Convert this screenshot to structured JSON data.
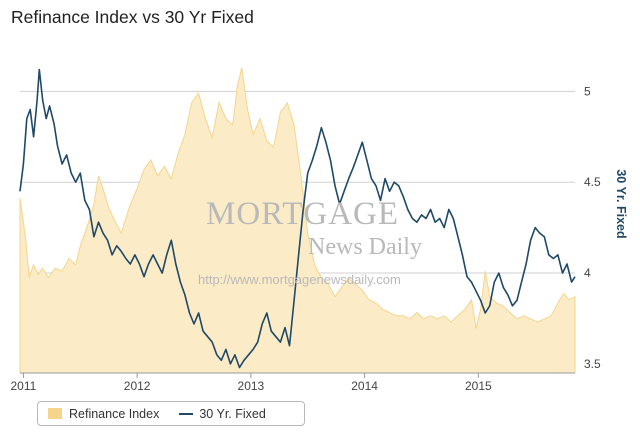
{
  "page": {
    "title": "Refinance Index vs 30 Yr Fixed"
  },
  "watermark": {
    "line1": "MORTGAGE",
    "line2": "News Daily",
    "url": "http://www.mortgagenewsdaily.com"
  },
  "legend": {
    "items": [
      {
        "label": "Refinance Index",
        "color": "#f5d48c"
      },
      {
        "label": "30 Yr. Fixed",
        "color": "#1f4966"
      }
    ]
  },
  "chart_data": {
    "type": "area+line",
    "x_tick_labels": [
      "2011",
      "2012",
      "2013",
      "2014",
      "2015"
    ],
    "x_tick_values": [
      2011,
      2012,
      2013,
      2014,
      2015
    ],
    "xlim": [
      2010.97,
      2015.85
    ],
    "right_axis": {
      "label": "30 Yr. Fixed",
      "ticks": [
        3.5,
        4,
        4.5,
        5
      ],
      "ylim": [
        3.45,
        5.2
      ]
    },
    "grid": true,
    "legend_position": "bottom-left",
    "series": [
      {
        "name": "Refinance Index",
        "type": "area",
        "axis": "hidden-left",
        "ylim": [
          0,
          1
        ],
        "points": [
          [
            2010.97,
            0.55
          ],
          [
            2011.02,
            0.42
          ],
          [
            2011.05,
            0.3
          ],
          [
            2011.09,
            0.34
          ],
          [
            2011.13,
            0.31
          ],
          [
            2011.17,
            0.33
          ],
          [
            2011.22,
            0.3
          ],
          [
            2011.28,
            0.33
          ],
          [
            2011.34,
            0.32
          ],
          [
            2011.4,
            0.36
          ],
          [
            2011.46,
            0.34
          ],
          [
            2011.5,
            0.4
          ],
          [
            2011.56,
            0.46
          ],
          [
            2011.62,
            0.53
          ],
          [
            2011.66,
            0.62
          ],
          [
            2011.7,
            0.58
          ],
          [
            2011.75,
            0.52
          ],
          [
            2011.8,
            0.48
          ],
          [
            2011.86,
            0.44
          ],
          [
            2011.93,
            0.52
          ],
          [
            2012.0,
            0.58
          ],
          [
            2012.06,
            0.64
          ],
          [
            2012.12,
            0.67
          ],
          [
            2012.18,
            0.62
          ],
          [
            2012.24,
            0.65
          ],
          [
            2012.3,
            0.61
          ],
          [
            2012.36,
            0.69
          ],
          [
            2012.42,
            0.75
          ],
          [
            2012.48,
            0.85
          ],
          [
            2012.54,
            0.88
          ],
          [
            2012.6,
            0.8
          ],
          [
            2012.66,
            0.74
          ],
          [
            2012.72,
            0.85
          ],
          [
            2012.78,
            0.8
          ],
          [
            2012.84,
            0.78
          ],
          [
            2012.88,
            0.9
          ],
          [
            2012.92,
            0.96
          ],
          [
            2012.97,
            0.83
          ],
          [
            2013.02,
            0.75
          ],
          [
            2013.08,
            0.8
          ],
          [
            2013.14,
            0.73
          ],
          [
            2013.2,
            0.71
          ],
          [
            2013.26,
            0.82
          ],
          [
            2013.32,
            0.85
          ],
          [
            2013.38,
            0.78
          ],
          [
            2013.44,
            0.62
          ],
          [
            2013.5,
            0.44
          ],
          [
            2013.56,
            0.34
          ],
          [
            2013.62,
            0.3
          ],
          [
            2013.68,
            0.28
          ],
          [
            2013.74,
            0.24
          ],
          [
            2013.8,
            0.27
          ],
          [
            2013.86,
            0.3
          ],
          [
            2013.92,
            0.28
          ],
          [
            2013.98,
            0.26
          ],
          [
            2014.04,
            0.23
          ],
          [
            2014.1,
            0.22
          ],
          [
            2014.16,
            0.2
          ],
          [
            2014.22,
            0.19
          ],
          [
            2014.28,
            0.18
          ],
          [
            2014.34,
            0.18
          ],
          [
            2014.4,
            0.17
          ],
          [
            2014.46,
            0.19
          ],
          [
            2014.52,
            0.17
          ],
          [
            2014.58,
            0.18
          ],
          [
            2014.64,
            0.17
          ],
          [
            2014.7,
            0.18
          ],
          [
            2014.76,
            0.16
          ],
          [
            2014.82,
            0.18
          ],
          [
            2014.88,
            0.2
          ],
          [
            2014.94,
            0.23
          ],
          [
            2014.98,
            0.14
          ],
          [
            2015.02,
            0.2
          ],
          [
            2015.06,
            0.32
          ],
          [
            2015.1,
            0.24
          ],
          [
            2015.16,
            0.22
          ],
          [
            2015.22,
            0.21
          ],
          [
            2015.28,
            0.19
          ],
          [
            2015.34,
            0.17
          ],
          [
            2015.4,
            0.18
          ],
          [
            2015.46,
            0.17
          ],
          [
            2015.52,
            0.16
          ],
          [
            2015.58,
            0.17
          ],
          [
            2015.64,
            0.18
          ],
          [
            2015.7,
            0.22
          ],
          [
            2015.75,
            0.25
          ],
          [
            2015.8,
            0.23
          ],
          [
            2015.85,
            0.24
          ]
        ]
      },
      {
        "name": "30 Yr. Fixed",
        "type": "line",
        "axis": "right",
        "points": [
          [
            2010.97,
            4.45
          ],
          [
            2011.0,
            4.6
          ],
          [
            2011.03,
            4.85
          ],
          [
            2011.06,
            4.9
          ],
          [
            2011.09,
            4.75
          ],
          [
            2011.12,
            4.95
          ],
          [
            2011.14,
            5.12
          ],
          [
            2011.17,
            4.95
          ],
          [
            2011.2,
            4.85
          ],
          [
            2011.23,
            4.92
          ],
          [
            2011.27,
            4.82
          ],
          [
            2011.3,
            4.7
          ],
          [
            2011.34,
            4.6
          ],
          [
            2011.38,
            4.65
          ],
          [
            2011.42,
            4.55
          ],
          [
            2011.46,
            4.5
          ],
          [
            2011.5,
            4.55
          ],
          [
            2011.54,
            4.4
          ],
          [
            2011.58,
            4.35
          ],
          [
            2011.62,
            4.2
          ],
          [
            2011.66,
            4.28
          ],
          [
            2011.7,
            4.22
          ],
          [
            2011.74,
            4.18
          ],
          [
            2011.78,
            4.1
          ],
          [
            2011.82,
            4.15
          ],
          [
            2011.86,
            4.12
          ],
          [
            2011.9,
            4.08
          ],
          [
            2011.94,
            4.05
          ],
          [
            2011.98,
            4.1
          ],
          [
            2012.02,
            4.05
          ],
          [
            2012.06,
            3.98
          ],
          [
            2012.1,
            4.05
          ],
          [
            2012.14,
            4.1
          ],
          [
            2012.18,
            4.05
          ],
          [
            2012.22,
            4.0
          ],
          [
            2012.26,
            4.1
          ],
          [
            2012.3,
            4.18
          ],
          [
            2012.34,
            4.05
          ],
          [
            2012.38,
            3.95
          ],
          [
            2012.42,
            3.88
          ],
          [
            2012.46,
            3.78
          ],
          [
            2012.5,
            3.72
          ],
          [
            2012.54,
            3.78
          ],
          [
            2012.58,
            3.68
          ],
          [
            2012.62,
            3.65
          ],
          [
            2012.66,
            3.62
          ],
          [
            2012.7,
            3.55
          ],
          [
            2012.74,
            3.52
          ],
          [
            2012.78,
            3.58
          ],
          [
            2012.82,
            3.5
          ],
          [
            2012.86,
            3.55
          ],
          [
            2012.9,
            3.48
          ],
          [
            2012.94,
            3.52
          ],
          [
            2012.98,
            3.55
          ],
          [
            2013.02,
            3.58
          ],
          [
            2013.06,
            3.62
          ],
          [
            2013.1,
            3.72
          ],
          [
            2013.14,
            3.78
          ],
          [
            2013.18,
            3.68
          ],
          [
            2013.22,
            3.65
          ],
          [
            2013.26,
            3.62
          ],
          [
            2013.3,
            3.7
          ],
          [
            2013.34,
            3.6
          ],
          [
            2013.38,
            3.85
          ],
          [
            2013.42,
            4.1
          ],
          [
            2013.46,
            4.35
          ],
          [
            2013.5,
            4.55
          ],
          [
            2013.54,
            4.62
          ],
          [
            2013.58,
            4.7
          ],
          [
            2013.62,
            4.8
          ],
          [
            2013.66,
            4.72
          ],
          [
            2013.7,
            4.62
          ],
          [
            2013.74,
            4.48
          ],
          [
            2013.78,
            4.38
          ],
          [
            2013.82,
            4.45
          ],
          [
            2013.86,
            4.52
          ],
          [
            2013.9,
            4.58
          ],
          [
            2013.94,
            4.65
          ],
          [
            2013.98,
            4.72
          ],
          [
            2014.02,
            4.62
          ],
          [
            2014.06,
            4.52
          ],
          [
            2014.1,
            4.48
          ],
          [
            2014.14,
            4.4
          ],
          [
            2014.18,
            4.52
          ],
          [
            2014.22,
            4.45
          ],
          [
            2014.26,
            4.5
          ],
          [
            2014.3,
            4.48
          ],
          [
            2014.34,
            4.42
          ],
          [
            2014.38,
            4.35
          ],
          [
            2014.42,
            4.3
          ],
          [
            2014.46,
            4.28
          ],
          [
            2014.5,
            4.32
          ],
          [
            2014.54,
            4.3
          ],
          [
            2014.58,
            4.35
          ],
          [
            2014.62,
            4.28
          ],
          [
            2014.66,
            4.3
          ],
          [
            2014.7,
            4.25
          ],
          [
            2014.74,
            4.35
          ],
          [
            2014.78,
            4.3
          ],
          [
            2014.82,
            4.2
          ],
          [
            2014.86,
            4.1
          ],
          [
            2014.9,
            3.98
          ],
          [
            2014.94,
            3.95
          ],
          [
            2014.98,
            3.9
          ],
          [
            2015.02,
            3.85
          ],
          [
            2015.06,
            3.78
          ],
          [
            2015.1,
            3.82
          ],
          [
            2015.14,
            3.95
          ],
          [
            2015.18,
            4.0
          ],
          [
            2015.22,
            3.92
          ],
          [
            2015.26,
            3.88
          ],
          [
            2015.3,
            3.82
          ],
          [
            2015.34,
            3.85
          ],
          [
            2015.38,
            3.95
          ],
          [
            2015.42,
            4.05
          ],
          [
            2015.46,
            4.18
          ],
          [
            2015.5,
            4.25
          ],
          [
            2015.54,
            4.22
          ],
          [
            2015.58,
            4.2
          ],
          [
            2015.62,
            4.1
          ],
          [
            2015.66,
            4.08
          ],
          [
            2015.7,
            4.1
          ],
          [
            2015.74,
            4.0
          ],
          [
            2015.78,
            4.05
          ],
          [
            2015.82,
            3.95
          ],
          [
            2015.85,
            3.98
          ]
        ]
      }
    ]
  }
}
